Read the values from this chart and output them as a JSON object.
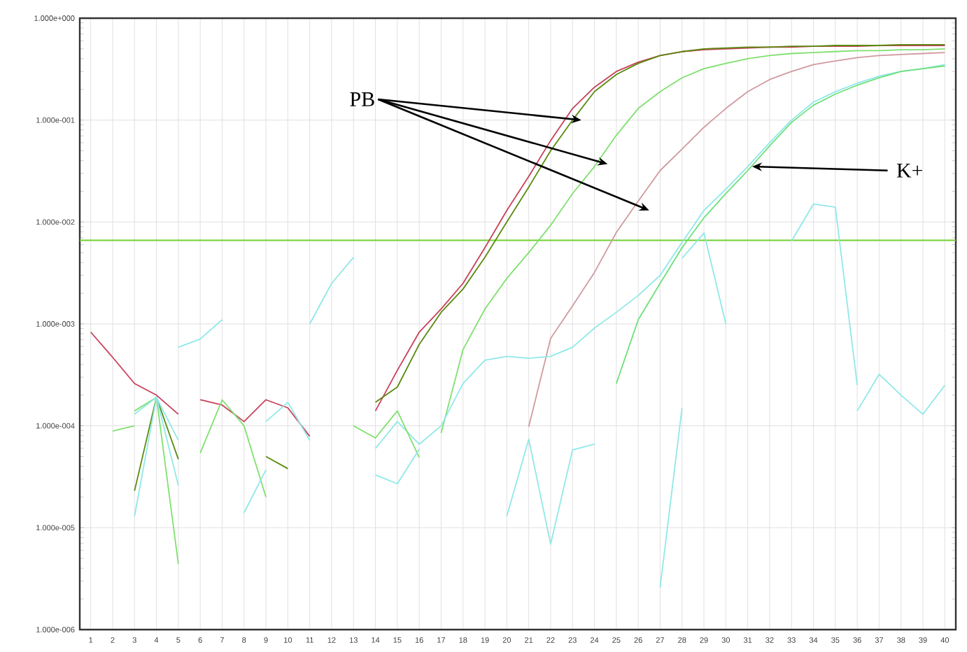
{
  "chart_data": {
    "type": "line",
    "log": "y",
    "grid": true,
    "marker": "none",
    "line_style": "solid",
    "xlim": [
      0.5,
      40.5
    ],
    "xticks": [
      1,
      2,
      3,
      4,
      5,
      6,
      7,
      8,
      9,
      10,
      11,
      12,
      13,
      14,
      15,
      16,
      17,
      18,
      19,
      20,
      21,
      22,
      23,
      24,
      25,
      26,
      27,
      28,
      29,
      30,
      31,
      32,
      33,
      34,
      35,
      36,
      37,
      38,
      39,
      40
    ],
    "ylim": [
      1e-06,
      1
    ],
    "yticks": [
      {
        "value": 1e-06,
        "label": "1.000e-006"
      },
      {
        "value": 1e-05,
        "label": "1.000e-005"
      },
      {
        "value": 0.0001,
        "label": "1.000e-004"
      },
      {
        "value": 0.001,
        "label": "1.000e-003"
      },
      {
        "value": 0.01,
        "label": "1.000e-002"
      },
      {
        "value": 0.1,
        "label": "1.000e-001"
      },
      {
        "value": 1,
        "label": "1.000e+000"
      }
    ],
    "ref_lines": [
      {
        "axis": "y",
        "value": 0.0066,
        "color": "#70d030"
      }
    ],
    "annotations": [
      {
        "text": "PB",
        "x": 23.4,
        "y": 0.1
      },
      {
        "text": "K+",
        "x": 31.2,
        "y": 0.035
      }
    ],
    "series": [
      {
        "color": "#c8405a",
        "x": [
          1,
          2,
          3,
          4,
          5
        ],
        "values": [
          0.00083,
          0.00047,
          0.00026,
          0.0002,
          0.00013
        ]
      },
      {
        "color": "#c8405a",
        "x": [
          6,
          7,
          8,
          9,
          10,
          11
        ],
        "values": [
          0.00018,
          0.00016,
          0.00011,
          0.00018,
          0.00015,
          7.9e-05
        ]
      },
      {
        "color": "#c8405a",
        "x": [
          14,
          15,
          16,
          17,
          18,
          19,
          20,
          21,
          22,
          23,
          24,
          25,
          26,
          27,
          28,
          29,
          30,
          31,
          32,
          33,
          34,
          35,
          36,
          37,
          38,
          39,
          40
        ],
        "values": [
          0.00014,
          0.00035,
          0.00083,
          0.0014,
          0.0025,
          0.0056,
          0.013,
          0.028,
          0.063,
          0.13,
          0.21,
          0.3,
          0.37,
          0.43,
          0.47,
          0.49,
          0.5,
          0.51,
          0.52,
          0.52,
          0.53,
          0.53,
          0.53,
          0.54,
          0.54,
          0.54,
          0.54
        ]
      },
      {
        "color": "#5a8a10",
        "x": [
          14,
          15,
          16,
          17,
          18,
          19,
          20,
          21,
          22,
          23,
          24,
          25,
          26,
          27,
          28,
          29,
          30,
          31,
          32,
          33,
          34,
          35,
          36,
          37,
          38,
          39,
          40
        ],
        "values": [
          0.00017,
          0.00024,
          0.00063,
          0.0013,
          0.0022,
          0.0045,
          0.01,
          0.022,
          0.05,
          0.1,
          0.19,
          0.28,
          0.36,
          0.43,
          0.47,
          0.5,
          0.51,
          0.52,
          0.52,
          0.53,
          0.53,
          0.54,
          0.54,
          0.54,
          0.55,
          0.55,
          0.55
        ]
      },
      {
        "color": "#5a8a10",
        "x": [
          3,
          4,
          5
        ],
        "values": [
          2.3e-05,
          0.00019,
          4.7e-05
        ]
      },
      {
        "color": "#5a8a10",
        "x": [
          9,
          10
        ],
        "values": [
          5e-05,
          3.8e-05
        ]
      },
      {
        "color": "#80e070",
        "x": [
          17,
          18,
          19,
          20,
          21,
          22,
          23,
          24,
          25,
          26,
          27,
          28,
          29,
          30,
          31,
          32,
          33,
          34,
          35,
          36,
          37,
          38,
          39,
          40
        ],
        "values": [
          8.5e-05,
          0.00056,
          0.0014,
          0.0028,
          0.005,
          0.0093,
          0.019,
          0.035,
          0.071,
          0.13,
          0.19,
          0.26,
          0.32,
          0.36,
          0.4,
          0.43,
          0.45,
          0.46,
          0.47,
          0.48,
          0.48,
          0.49,
          0.49,
          0.5
        ]
      },
      {
        "color": "#d09aa0",
        "x": [
          21,
          22,
          23,
          24,
          25,
          26,
          27,
          28,
          29,
          30,
          31,
          32,
          33,
          34,
          35,
          36,
          37,
          38,
          39,
          40
        ],
        "values": [
          9.8e-05,
          0.00072,
          0.0015,
          0.0032,
          0.0079,
          0.016,
          0.032,
          0.052,
          0.085,
          0.13,
          0.19,
          0.25,
          0.3,
          0.35,
          0.38,
          0.41,
          0.43,
          0.44,
          0.45,
          0.46
        ]
      },
      {
        "color": "#90e8e8",
        "x": [
          14,
          15,
          16,
          17,
          18,
          19,
          20,
          21,
          22,
          23,
          24,
          25,
          26,
          27,
          28,
          29,
          30,
          31,
          32,
          33,
          34,
          35,
          36,
          37,
          38,
          39,
          40
        ],
        "values": [
          6e-05,
          0.00011,
          6.6e-05,
          0.0001,
          0.00026,
          0.00044,
          0.00048,
          0.00046,
          0.00048,
          0.00059,
          0.00091,
          0.0013,
          0.0019,
          0.003,
          0.0063,
          0.013,
          0.021,
          0.035,
          0.06,
          0.1,
          0.15,
          0.19,
          0.23,
          0.27,
          0.3,
          0.32,
          0.35
        ]
      },
      {
        "color": "#6ee07a",
        "x": [
          25,
          26,
          27,
          28,
          29,
          30,
          31,
          32,
          33,
          34,
          35,
          36,
          37,
          38,
          39,
          40
        ],
        "values": [
          0.00026,
          0.0011,
          0.0025,
          0.0056,
          0.011,
          0.019,
          0.032,
          0.056,
          0.095,
          0.14,
          0.18,
          0.22,
          0.26,
          0.3,
          0.32,
          0.34
        ]
      },
      {
        "color": "#80e070",
        "x": [
          2,
          3
        ],
        "values": [
          8.9e-05,
          0.0001
        ]
      },
      {
        "color": "#80e070",
        "x": [
          3,
          4,
          5
        ],
        "values": [
          0.00014,
          0.00019,
          4.4e-06
        ]
      },
      {
        "color": "#80e070",
        "x": [
          6,
          7,
          8,
          9
        ],
        "values": [
          5.4e-05,
          0.00018,
          0.0001,
          2e-05
        ]
      },
      {
        "color": "#80e070",
        "x": [
          13,
          14,
          15,
          16
        ],
        "values": [
          0.0001,
          7.6e-05,
          0.00014,
          4.9e-05
        ]
      },
      {
        "color": "#90e8e8",
        "x": [
          3,
          4,
          5
        ],
        "values": [
          1.3e-05,
          0.00019,
          2.6e-05
        ]
      },
      {
        "color": "#90e8e8",
        "x": [
          3,
          4,
          5
        ],
        "values": [
          0.00013,
          0.00019,
          7.2e-05
        ]
      },
      {
        "color": "#90e8e8",
        "x": [
          5,
          6,
          7
        ],
        "values": [
          0.00059,
          0.00071,
          0.0011
        ]
      },
      {
        "color": "#90e8e8",
        "x": [
          8,
          9
        ],
        "values": [
          1.4e-05,
          3.7e-05
        ]
      },
      {
        "color": "#90e8e8",
        "x": [
          9,
          10,
          11
        ],
        "values": [
          0.00011,
          0.00017,
          7.2e-05
        ]
      },
      {
        "color": "#90e8e8",
        "x": [
          11,
          12,
          13
        ],
        "values": [
          0.001,
          0.0025,
          0.0045
        ]
      },
      {
        "color": "#90e8e8",
        "x": [
          14,
          15,
          16
        ],
        "values": [
          3.3e-05,
          2.7e-05,
          5.9e-05
        ]
      },
      {
        "color": "#90e8e8",
        "x": [
          20,
          21,
          22,
          23,
          24
        ],
        "values": [
          1.3e-05,
          7.4e-05,
          6.9e-06,
          5.8e-05,
          6.6e-05
        ]
      },
      {
        "color": "#90e8e8",
        "x": [
          27,
          28
        ],
        "values": [
          2.6e-06,
          0.00015
        ]
      },
      {
        "color": "#90e8e8",
        "x": [
          28,
          29,
          30
        ],
        "values": [
          0.0044,
          0.0078,
          0.001
        ]
      },
      {
        "color": "#90e8e8",
        "x": [
          33,
          34,
          35,
          36
        ],
        "values": [
          0.0065,
          0.015,
          0.014,
          0.00025
        ]
      },
      {
        "color": "#90e8e8",
        "x": [
          36,
          37,
          38,
          39,
          40
        ],
        "values": [
          0.00014,
          0.00032,
          0.0002,
          0.00013,
          0.00025
        ]
      }
    ]
  }
}
